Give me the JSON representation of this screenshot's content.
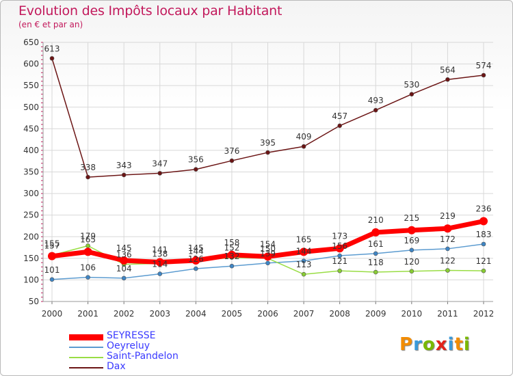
{
  "header": {
    "title": "Evolution des Impôts locaux par Habitant",
    "subtitle": "(en € et par an)"
  },
  "logo": {
    "text": "Proxiti",
    "colors": [
      "#f28c00",
      "#3a9ad9",
      "#7ab800",
      "#e2231a",
      "#3a9ad9",
      "#f28c00",
      "#7ab800"
    ]
  },
  "chart_data": {
    "type": "line",
    "title": "Evolution des Impôts locaux par Habitant",
    "subtitle": "(en € et par an)",
    "xlabel": "",
    "ylabel": "",
    "x": [
      "2000",
      "2001",
      "2002",
      "2003",
      "2004",
      "2005",
      "2006",
      "2007",
      "2008",
      "2009",
      "2010",
      "2011",
      "2012"
    ],
    "ylim": [
      50,
      650
    ],
    "yticks": [
      50,
      100,
      150,
      200,
      250,
      300,
      350,
      400,
      450,
      500,
      550,
      600,
      650
    ],
    "grid": true,
    "legend": "bottom-left",
    "series": [
      {
        "name": "Dax",
        "color": "#6b1414",
        "values": [
          613,
          338,
          343,
          347,
          356,
          376,
          395,
          409,
          457,
          493,
          530,
          564,
          574
        ]
      },
      {
        "name": "Oeyreluy",
        "color": "#5b9bd0",
        "values": [
          101,
          106,
          104,
          114,
          126,
          132,
          139,
          144,
          156,
          161,
          169,
          172,
          183
        ]
      },
      {
        "name": "Saint-Pandelon",
        "color": "#99dd44",
        "values": [
          157,
          179,
          136,
          138,
          144,
          152,
          150,
          113,
          121,
          118,
          120,
          122,
          121
        ]
      },
      {
        "name": "SEYRESSE",
        "color": "#ff0000",
        "values": [
          155,
          165,
          145,
          141,
          145,
          158,
          154,
          165,
          173,
          210,
          215,
          219,
          236
        ]
      }
    ]
  }
}
